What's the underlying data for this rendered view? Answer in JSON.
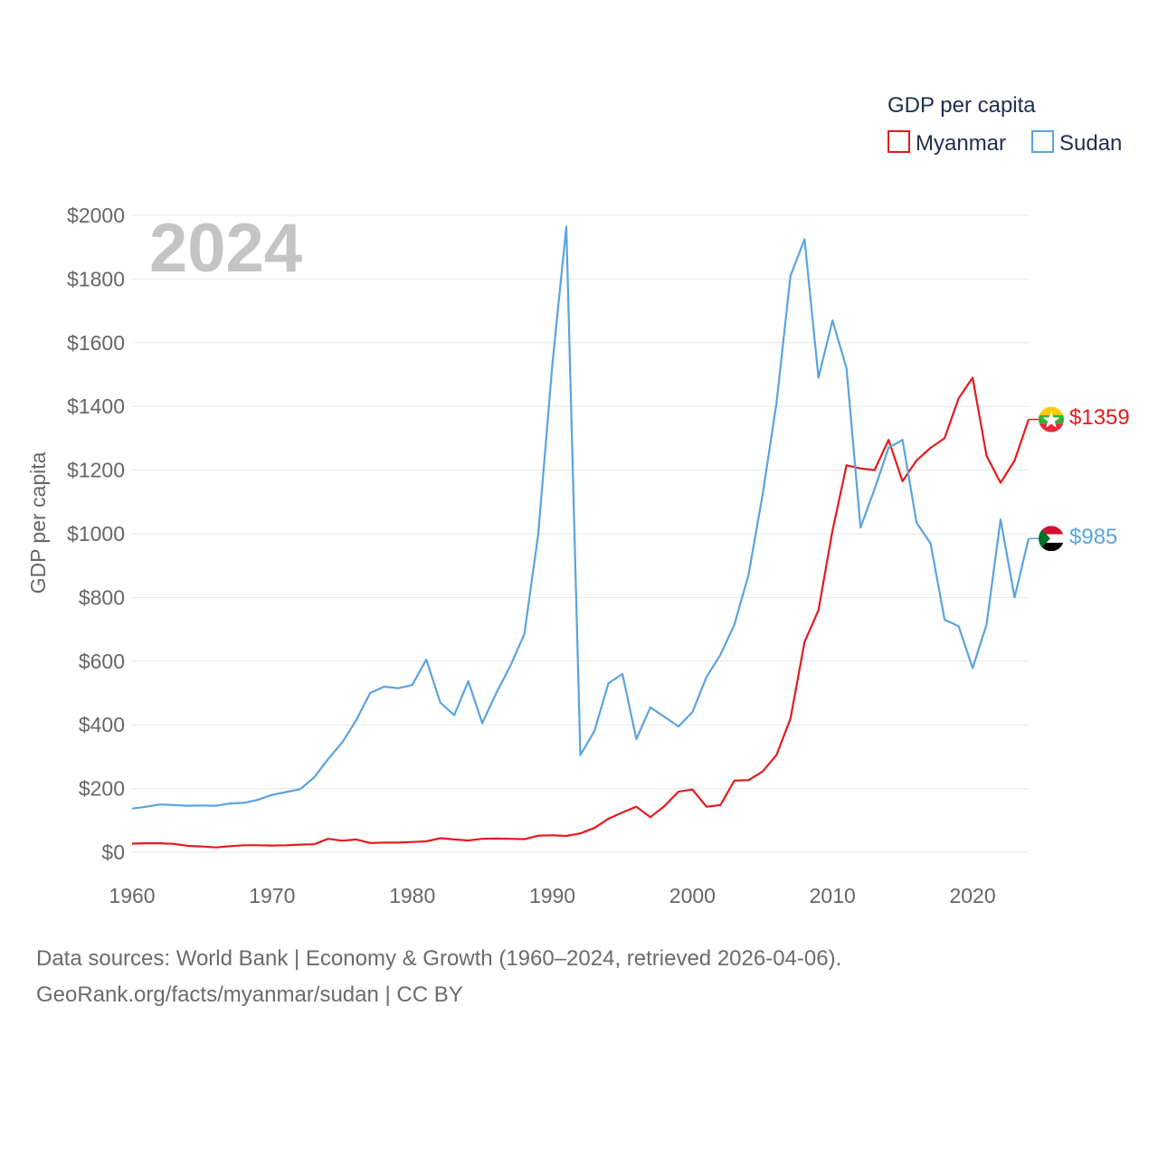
{
  "chart_data": {
    "type": "line",
    "title": "GDP per capita",
    "current_year_label": "2024",
    "xlabel": "",
    "ylabel": "GDP per capita",
    "xlim": [
      1960,
      2024
    ],
    "ylim": [
      0,
      2000
    ],
    "x_ticks": [
      1960,
      1970,
      1980,
      1990,
      2000,
      2010,
      2020
    ],
    "y_ticks": [
      {
        "value": 0,
        "label": "$0"
      },
      {
        "value": 200,
        "label": "$200"
      },
      {
        "value": 400,
        "label": "$400"
      },
      {
        "value": 600,
        "label": "$600"
      },
      {
        "value": 800,
        "label": "$800"
      },
      {
        "value": 1000,
        "label": "$1000"
      },
      {
        "value": 1200,
        "label": "$1200"
      },
      {
        "value": 1400,
        "label": "$1400"
      },
      {
        "value": 1600,
        "label": "$1600"
      },
      {
        "value": 1800,
        "label": "$1800"
      },
      {
        "value": 2000,
        "label": "$2000"
      }
    ],
    "legend": {
      "title": "GDP per capita",
      "placement": "top-right"
    },
    "x": [
      1960,
      1961,
      1962,
      1963,
      1964,
      1965,
      1966,
      1967,
      1968,
      1969,
      1970,
      1971,
      1972,
      1973,
      1974,
      1975,
      1976,
      1977,
      1978,
      1979,
      1980,
      1981,
      1982,
      1983,
      1984,
      1985,
      1986,
      1987,
      1988,
      1989,
      1990,
      1991,
      1992,
      1993,
      1994,
      1995,
      1996,
      1997,
      1998,
      1999,
      2000,
      2001,
      2002,
      2003,
      2004,
      2005,
      2006,
      2007,
      2008,
      2009,
      2010,
      2011,
      2012,
      2013,
      2014,
      2015,
      2016,
      2017,
      2018,
      2019,
      2020,
      2021,
      2022,
      2023,
      2024
    ],
    "series": [
      {
        "name": "Myanmar",
        "color": "#e41a1c",
        "end_label": "$1359",
        "flag_icon": "myanmar-flag-icon",
        "values": [
          27,
          28,
          28,
          26,
          20,
          18,
          15,
          19,
          22,
          22,
          21,
          22,
          24,
          25,
          42,
          36,
          40,
          29,
          30,
          30,
          32,
          34,
          44,
          40,
          37,
          42,
          43,
          42,
          41,
          52,
          53,
          51,
          59,
          76,
          105,
          125,
          143,
          110,
          145,
          190,
          197,
          143,
          148,
          225,
          226,
          253,
          305,
          420,
          660,
          760,
          1010,
          1215,
          1205,
          1200,
          1295,
          1165,
          1230,
          1270,
          1300,
          1425,
          1490,
          1245,
          1160,
          1230,
          1359
        ]
      },
      {
        "name": "Sudan",
        "color": "#5aa3e0",
        "end_label": "$985",
        "flag_icon": "sudan-flag-icon",
        "values": [
          137,
          143,
          150,
          148,
          146,
          147,
          146,
          153,
          155,
          165,
          180,
          189,
          198,
          235,
          293,
          345,
          415,
          500,
          520,
          515,
          525,
          605,
          470,
          430,
          537,
          405,
          500,
          585,
          685,
          1000,
          1530,
          1965,
          305,
          380,
          530,
          560,
          355,
          455,
          425,
          395,
          440,
          550,
          620,
          715,
          870,
          1120,
          1410,
          1810,
          1925,
          1490,
          1670,
          1520,
          1020,
          1140,
          1270,
          1295,
          1035,
          970,
          730,
          710,
          578,
          715,
          1045,
          800,
          985
        ]
      }
    ]
  },
  "footer": {
    "source_line": "Data sources: World Bank | Economy & Growth (1960–2024, retrieved 2026-04-06).",
    "credit_line": "GeoRank.org/facts/myanmar/sudan | CC BY"
  }
}
